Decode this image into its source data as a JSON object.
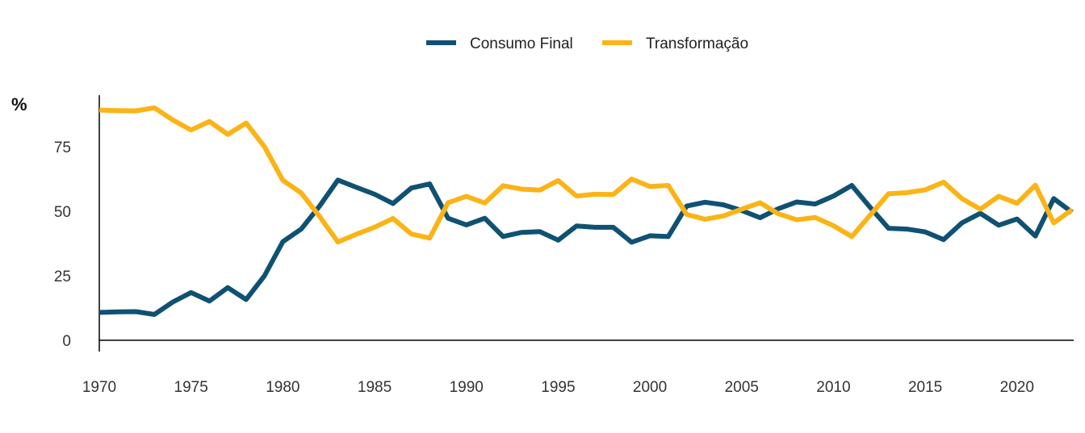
{
  "chart_data": {
    "type": "line",
    "title": "",
    "xlabel": "",
    "ylabel": "%",
    "x": [
      1970,
      1971,
      1972,
      1973,
      1974,
      1975,
      1976,
      1977,
      1978,
      1979,
      1980,
      1981,
      1982,
      1983,
      1984,
      1985,
      1986,
      1987,
      1988,
      1989,
      1990,
      1991,
      1992,
      1993,
      1994,
      1995,
      1996,
      1997,
      1998,
      1999,
      2000,
      2001,
      2002,
      2003,
      2004,
      2005,
      2006,
      2007,
      2008,
      2009,
      2010,
      2011,
      2012,
      2013,
      2014,
      2015,
      2016,
      2017,
      2018,
      2019,
      2020,
      2021,
      2022,
      2023
    ],
    "xlim": [
      1970,
      2023
    ],
    "ylim": [
      0,
      95
    ],
    "x_ticks": [
      "1970",
      "1975",
      "1980",
      "1985",
      "1990",
      "1995",
      "2000",
      "2005",
      "2010",
      "2015",
      "2020"
    ],
    "y_ticks": [
      "0",
      "25",
      "50",
      "75"
    ],
    "legend_position": "top-center",
    "grid": false,
    "series": [
      {
        "name": "Consumo Final",
        "color": "#0f5173",
        "values": [
          10.8,
          11,
          11.1,
          10,
          14.8,
          18.5,
          15.2,
          20.4,
          15.8,
          25,
          38.2,
          43.1,
          52,
          62.1,
          59.3,
          56.6,
          53,
          59,
          60.6,
          47.3,
          44.7,
          47.3,
          40.2,
          41.8,
          42.1,
          38.8,
          44.3,
          43.8,
          43.8,
          38,
          40.5,
          40.2,
          52,
          53.5,
          52.5,
          50.3,
          47.5,
          51,
          53.6,
          52.8,
          55.9,
          60,
          51.5,
          43.4,
          43.1,
          42,
          39,
          45.5,
          49.2,
          44.6,
          47,
          40.4,
          54.9,
          49.6
        ]
      },
      {
        "name": "Transformação",
        "color": "#fbb316",
        "values": [
          89.2,
          89,
          88.9,
          90.1,
          85.4,
          81.5,
          84.8,
          79.8,
          84.2,
          75,
          62,
          57.1,
          48,
          38.1,
          41.1,
          43.8,
          47.2,
          41.2,
          39.6,
          53.3,
          55.8,
          53.2,
          59.9,
          58.6,
          58.2,
          61.9,
          55.9,
          56.6,
          56.5,
          62.5,
          59.6,
          60,
          48.8,
          46.9,
          48.2,
          50.8,
          53.3,
          49,
          46.7,
          47.6,
          44.4,
          40.2,
          48.5,
          56.8,
          57.2,
          58.3,
          61.3,
          54.9,
          50.8,
          55.8,
          53.1,
          60.1,
          45.5,
          50.6
        ]
      }
    ]
  }
}
